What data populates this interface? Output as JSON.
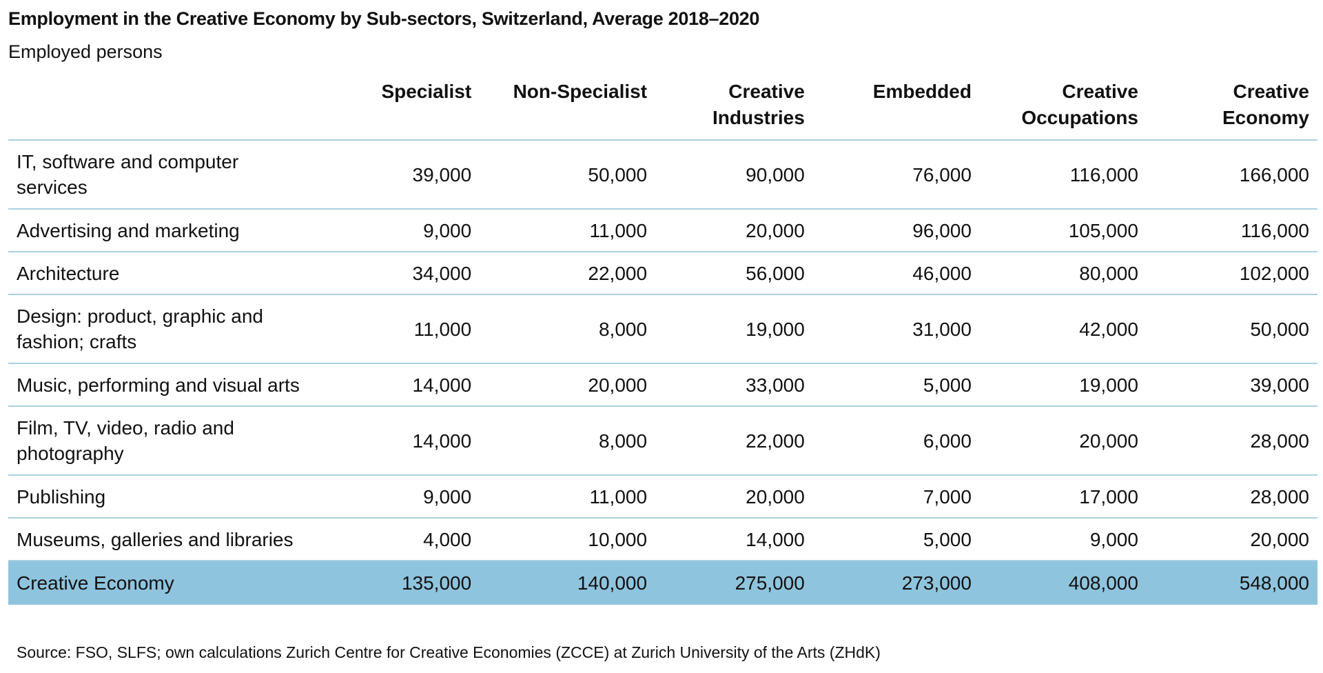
{
  "title": "Employment in the Creative Economy by Sub-sectors, Switzerland, Average 2018–2020",
  "subtitle": "Employed persons",
  "columns": [
    "Specialist",
    "Non-Specialist",
    "Creative Industries",
    "Embedded",
    "Creative Occupations",
    "Creative Economy"
  ],
  "rows": [
    {
      "label": "IT, software and computer services",
      "values": [
        "39,000",
        "50,000",
        "90,000",
        "76,000",
        "116,000",
        "166,000"
      ]
    },
    {
      "label": "Advertising and marketing",
      "values": [
        "9,000",
        "11,000",
        "20,000",
        "96,000",
        "105,000",
        "116,000"
      ]
    },
    {
      "label": "Architecture",
      "values": [
        "34,000",
        "22,000",
        "56,000",
        "46,000",
        "80,000",
        "102,000"
      ]
    },
    {
      "label": "Design: product, graphic and fashion; crafts",
      "values": [
        "11,000",
        "8,000",
        "19,000",
        "31,000",
        "42,000",
        "50,000"
      ]
    },
    {
      "label": "Music, performing and visual arts",
      "values": [
        "14,000",
        "20,000",
        "33,000",
        "5,000",
        "19,000",
        "39,000"
      ]
    },
    {
      "label": "Film, TV, video, radio and photography",
      "values": [
        "14,000",
        "8,000",
        "22,000",
        "6,000",
        "20,000",
        "28,000"
      ]
    },
    {
      "label": "Publishing",
      "values": [
        "9,000",
        "11,000",
        "20,000",
        "7,000",
        "17,000",
        "28,000"
      ]
    },
    {
      "label": "Museums, galleries and libraries",
      "values": [
        "4,000",
        "10,000",
        "14,000",
        "5,000",
        "9,000",
        "20,000"
      ]
    }
  ],
  "total": {
    "label": "Creative Economy",
    "values": [
      "135,000",
      "140,000",
      "275,000",
      "273,000",
      "408,000",
      "548,000"
    ]
  },
  "source": "Source: FSO, SLFS; own calculations Zurich Centre for Creative Economies (ZCCE) at Zurich University of the Arts (ZHdK)",
  "colors": {
    "total_row": "#8fc4de",
    "rule": "#a9d0e3"
  }
}
